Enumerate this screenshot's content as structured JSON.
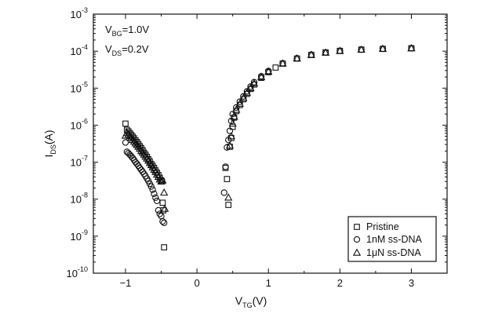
{
  "chart_data": {
    "type": "scatter",
    "xlabel": {
      "main": "V",
      "sub": "TG",
      "tail": "(V)"
    },
    "ylabel": {
      "main": "I",
      "sub": "DS",
      "tail": "(A)"
    },
    "xlim": [
      -1.45,
      3.5
    ],
    "ylim": [
      1e-10,
      0.001
    ],
    "yscale": "log",
    "x_ticks": [
      {
        "value": -1,
        "label": "−1"
      },
      {
        "value": 0,
        "label": "0"
      },
      {
        "value": 1,
        "label": "1"
      },
      {
        "value": 2,
        "label": "2"
      },
      {
        "value": 3,
        "label": "3"
      }
    ],
    "y_ticks": [
      {
        "value": -3,
        "label": "-3"
      },
      {
        "value": -4,
        "label": "-4"
      },
      {
        "value": -5,
        "label": "-5"
      },
      {
        "value": -6,
        "label": "-6"
      },
      {
        "value": -7,
        "label": "-7"
      },
      {
        "value": -8,
        "label": "-8"
      },
      {
        "value": -9,
        "label": "-9"
      },
      {
        "value": -10,
        "label": "-10"
      }
    ],
    "y_tick_base": "10",
    "annotations": [
      {
        "main": "V",
        "sub": "BG",
        "tail": "=1.0V"
      },
      {
        "main": "V",
        "sub": "DS",
        "tail": "=0.2V"
      }
    ],
    "legend_position": "bottom-right",
    "grid": false,
    "series": [
      {
        "name": "Pristine",
        "marker": "square",
        "x": [
          -1.0,
          -0.98,
          -0.96,
          -0.94,
          -0.92,
          -0.9,
          -0.88,
          -0.86,
          -0.84,
          -0.82,
          -0.8,
          -0.78,
          -0.76,
          -0.74,
          -0.72,
          -0.7,
          -0.68,
          -0.66,
          -0.64,
          -0.62,
          -0.6,
          -0.58,
          -0.56,
          -0.54,
          -0.52,
          -0.5,
          -0.49,
          -0.48,
          -0.47,
          -0.46,
          0.4,
          0.42,
          0.44,
          0.46,
          0.48,
          0.5,
          0.52,
          0.55,
          0.6,
          0.65,
          0.7,
          0.75,
          0.8,
          0.9,
          1.0,
          1.1,
          1.2,
          1.4,
          1.6,
          1.8,
          2.0,
          2.3,
          2.6,
          3.0
        ],
        "y": [
          1.1e-06,
          7.5e-07,
          6.8e-07,
          6.1e-07,
          5.5e-07,
          4.9e-07,
          4.4e-07,
          3.9e-07,
          3.5e-07,
          3.1e-07,
          2.7e-07,
          2.4e-07,
          2.1e-07,
          1.8e-07,
          1.6e-07,
          1.4e-07,
          1.2e-07,
          1.05e-07,
          9e-08,
          8e-08,
          7e-08,
          6e-08,
          5.2e-08,
          4.5e-08,
          3.8e-08,
          3.2e-08,
          3e-08,
          8e-09,
          5e-09,
          5e-10,
          7e-08,
          3.5e-08,
          7e-09,
          2.6e-07,
          4.5e-07,
          9e-07,
          1.6e-06,
          2.4e-06,
          3.5e-06,
          5e-06,
          7e-06,
          9.5e-06,
          1.25e-05,
          1.9e-05,
          2.7e-05,
          3.6e-05,
          4.6e-05,
          6.3e-05,
          7.9e-05,
          9.2e-05,
          0.000102,
          0.00011,
          0.000115,
          0.00012
        ]
      },
      {
        "name": "1nM ss-DNA",
        "marker": "circle",
        "x": [
          -1.0,
          -0.98,
          -0.96,
          -0.94,
          -0.92,
          -0.9,
          -0.88,
          -0.86,
          -0.84,
          -0.82,
          -0.8,
          -0.78,
          -0.76,
          -0.74,
          -0.72,
          -0.7,
          -0.68,
          -0.66,
          -0.64,
          -0.62,
          -0.6,
          -0.58,
          -0.56,
          -0.54,
          -0.52,
          -0.5,
          -0.48,
          -0.46,
          0.38,
          0.4,
          0.42,
          0.44,
          0.46,
          0.48,
          0.5,
          0.55,
          0.6,
          0.65,
          0.7,
          0.75,
          0.8,
          0.9,
          1.0,
          1.2,
          1.4,
          1.6,
          1.8,
          2.0,
          2.3,
          2.6,
          3.0
        ],
        "y": [
          3.4e-07,
          1.9e-07,
          1.75e-07,
          1.6e-07,
          1.45e-07,
          1.3e-07,
          1.15e-07,
          1e-07,
          9e-08,
          8e-08,
          7e-08,
          6.2e-08,
          5.5e-08,
          4.8e-08,
          4.2e-08,
          3.6e-08,
          3.1e-08,
          2.6e-08,
          2.2e-08,
          1.8e-08,
          1.4e-08,
          1.1e-08,
          9e-09,
          5e-09,
          4e-09,
          3.5e-09,
          2.5e-09,
          2.3e-09,
          1.5e-08,
          7.5e-08,
          2.5e-07,
          4e-07,
          7e-07,
          1.3e-06,
          2e-06,
          3e-06,
          4.3e-06,
          6e-06,
          8.2e-06,
          1.1e-05,
          1.45e-05,
          2.1e-05,
          2.9e-05,
          4.7e-05,
          6.4e-05,
          8e-05,
          9.2e-05,
          0.000102,
          0.00011,
          0.000116,
          0.00012
        ]
      },
      {
        "name": "1μN ss-DNA",
        "marker": "triangle",
        "x": [
          -1.0,
          -0.98,
          -0.96,
          -0.94,
          -0.92,
          -0.9,
          -0.88,
          -0.86,
          -0.84,
          -0.82,
          -0.8,
          -0.78,
          -0.76,
          -0.74,
          -0.72,
          -0.7,
          -0.68,
          -0.66,
          -0.64,
          -0.62,
          -0.6,
          -0.58,
          -0.56,
          -0.54,
          -0.52,
          -0.5,
          -0.48,
          -0.46,
          -0.45,
          0.44,
          0.46,
          0.48,
          0.5,
          0.52,
          0.55,
          0.6,
          0.65,
          0.7,
          0.75,
          0.8,
          0.9,
          1.0,
          1.2,
          1.4,
          1.6,
          1.8,
          2.0,
          2.3,
          2.6,
          3.0
        ],
        "y": [
          5.2e-07,
          6.2e-07,
          5.6e-07,
          5e-07,
          4.5e-07,
          4e-07,
          3.6e-07,
          3.2e-07,
          2.9e-07,
          2.6e-07,
          2.3e-07,
          2e-07,
          1.8e-07,
          1.6e-07,
          1.4e-07,
          1.25e-07,
          1.1e-07,
          9.5e-08,
          8.3e-08,
          7.2e-08,
          6.2e-08,
          5.4e-08,
          4.6e-08,
          4e-08,
          3.4e-08,
          3e-08,
          3.2e-08,
          1.5e-08,
          5.5e-09,
          1.1e-08,
          2.8e-07,
          5e-07,
          1.1e-06,
          1.7e-06,
          2.6e-06,
          3.8e-06,
          5.4e-06,
          7.5e-06,
          1e-05,
          1.35e-05,
          2e-05,
          2.8e-05,
          4.6e-05,
          6.3e-05,
          7.9e-05,
          9.1e-05,
          0.000101,
          0.000109,
          0.000115,
          0.000119
        ]
      }
    ]
  }
}
